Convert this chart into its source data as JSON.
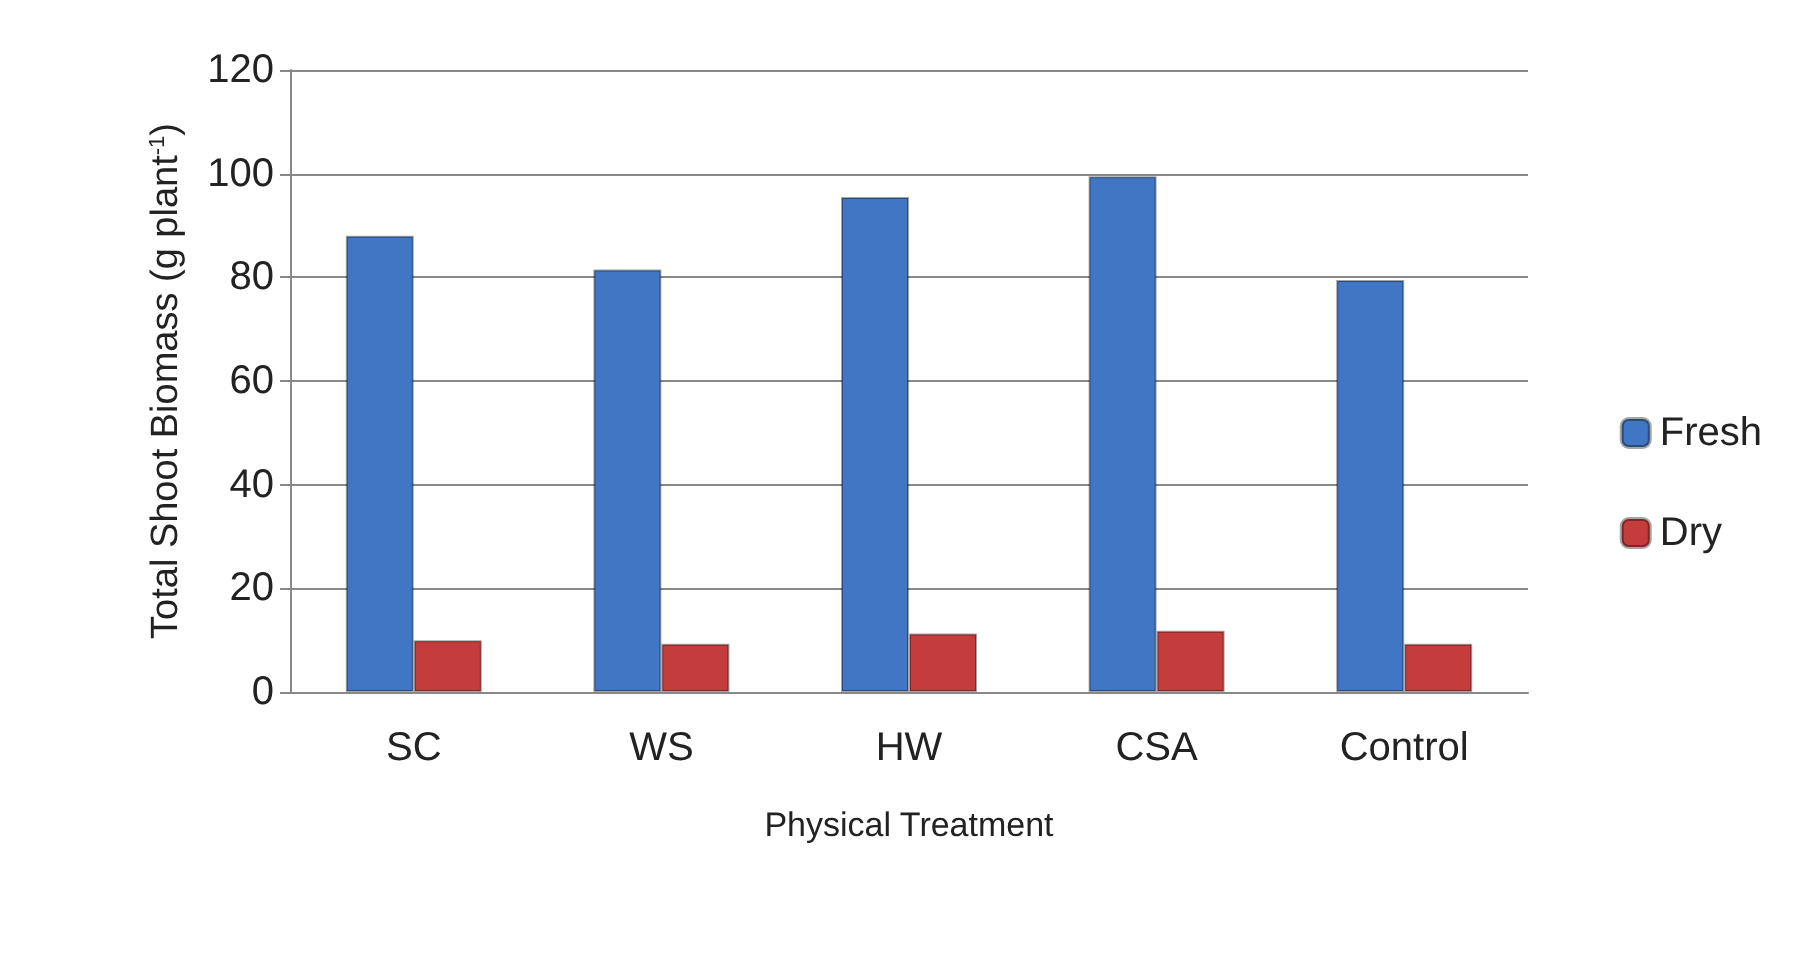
{
  "chart_data": {
    "type": "bar",
    "xlabel": "Physical Treatment",
    "ylabel": "Total Shoot Biomass (g plant$^{-1}$)",
    "categories": [
      "SC",
      "WS",
      "HW",
      "CSA",
      "Control"
    ],
    "series": [
      {
        "name": "Fresh",
        "color": "#4076c4",
        "values": [
          88,
          81.5,
          95.5,
          99.5,
          79.5
        ]
      },
      {
        "name": "Dry",
        "color": "#c43c3c",
        "values": [
          10,
          9.3,
          11.3,
          11.8,
          9.3
        ]
      }
    ],
    "ylim": [
      0,
      120
    ],
    "yticks": [
      0,
      20,
      40,
      60,
      80,
      100,
      120
    ],
    "grid": "y",
    "legend": "right"
  }
}
